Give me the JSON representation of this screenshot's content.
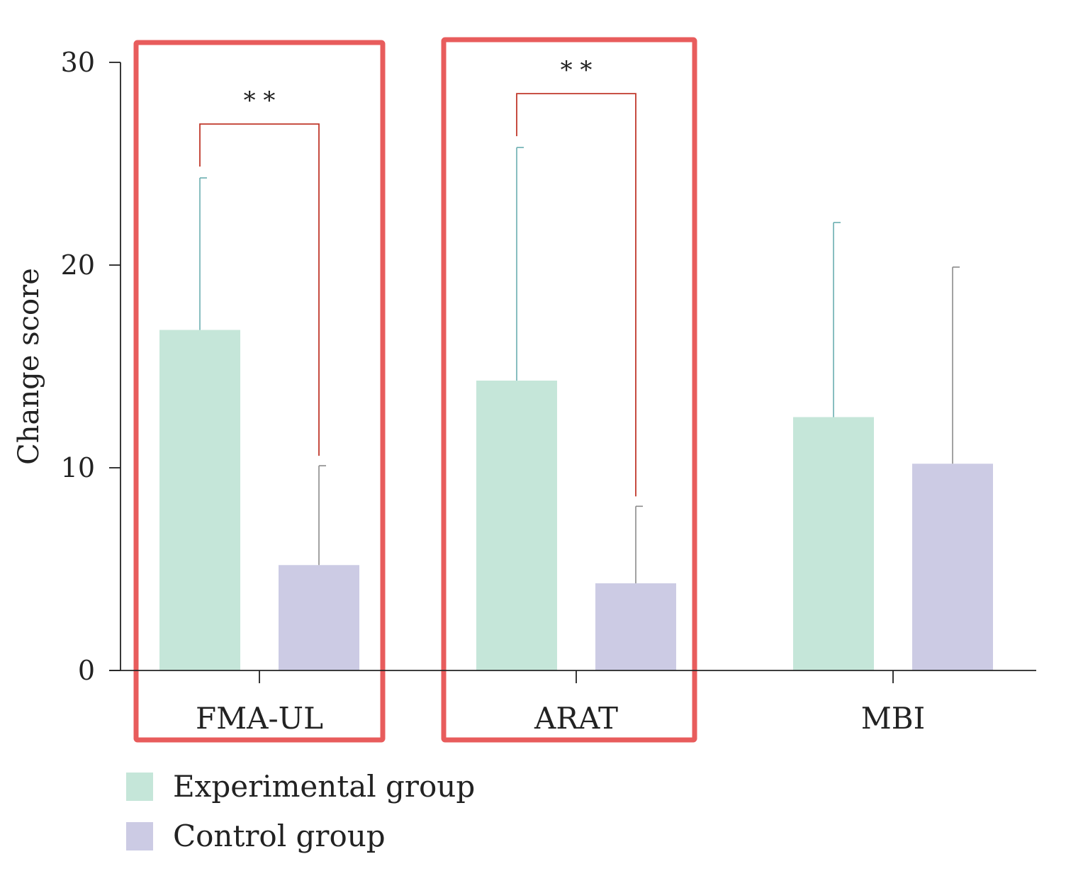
{
  "chart_data": {
    "type": "bar",
    "title": "",
    "xlabel": "",
    "ylabel": "Change score",
    "ylim": [
      0,
      30
    ],
    "yticks": [
      0,
      10,
      20,
      30
    ],
    "categories": [
      "FMA-UL",
      "ARAT",
      "MBI"
    ],
    "series": [
      {
        "name": "Experimental group",
        "color": "#c5e6d9",
        "error_color": "#6aaeb0",
        "values": [
          16.8,
          14.3,
          12.5
        ],
        "error_upper": [
          24.3,
          25.8,
          22.1
        ]
      },
      {
        "name": "Control group",
        "color": "#cccbe4",
        "error_color": "#8a8a8a",
        "values": [
          5.2,
          4.3,
          10.2
        ],
        "error_upper": [
          10.1,
          8.1,
          19.9
        ]
      }
    ],
    "significance": [
      {
        "category": "FMA-UL",
        "label": "**"
      },
      {
        "category": "ARAT",
        "label": "**"
      }
    ],
    "highlight_boxes": [
      "FMA-UL",
      "ARAT"
    ],
    "highlight_color": "#e85c5c",
    "bracket_color": "#c0392b",
    "grid": false,
    "legend_position": "bottom-left"
  }
}
